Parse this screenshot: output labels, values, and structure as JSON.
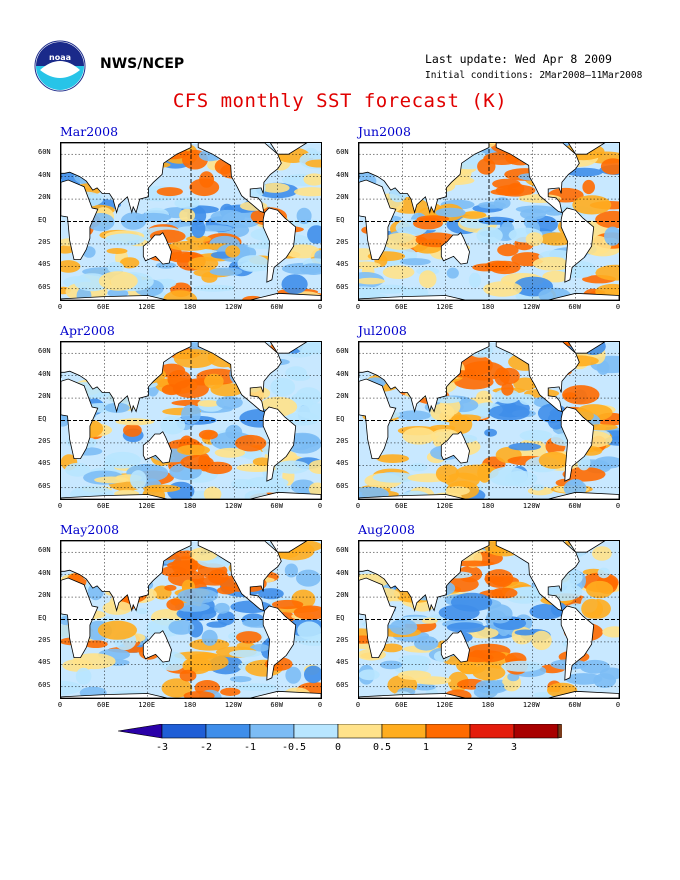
{
  "header": {
    "agency": "NWS/NCEP",
    "last_update": "Last update: Wed Apr 8 2009",
    "initial_conditions": "Initial conditions: 2Mar2008–11Mar2008",
    "title": "CFS monthly SST forecast (K)"
  },
  "logo": {
    "icon": "noaa-logo-icon",
    "text": "noaa"
  },
  "panels": [
    {
      "id": "mar2008",
      "label": "Mar2008"
    },
    {
      "id": "jun2008",
      "label": "Jun2008"
    },
    {
      "id": "apr2008",
      "label": "Apr2008"
    },
    {
      "id": "jul2008",
      "label": "Jul2008"
    },
    {
      "id": "may2008",
      "label": "May2008"
    },
    {
      "id": "aug2008",
      "label": "Aug2008"
    }
  ],
  "axes": {
    "lat_labels": [
      "60N",
      "40N",
      "20N",
      "EQ",
      "20S",
      "40S",
      "60S"
    ],
    "lon_labels": [
      "0",
      "60E",
      "120E",
      "180",
      "120W",
      "60W",
      "0"
    ]
  },
  "colorbar": {
    "labels": [
      "-3",
      "-2",
      "-1",
      "-0.5",
      "0",
      "0.5",
      "1",
      "2",
      "3"
    ],
    "colors": [
      "#2a00a8",
      "#1f5ed6",
      "#3f8eea",
      "#7cbcf5",
      "#b8e6ff",
      "#ffe28a",
      "#ffad1f",
      "#ff6a00",
      "#e41c0c",
      "#a80000",
      "#7a3a1a"
    ]
  }
}
